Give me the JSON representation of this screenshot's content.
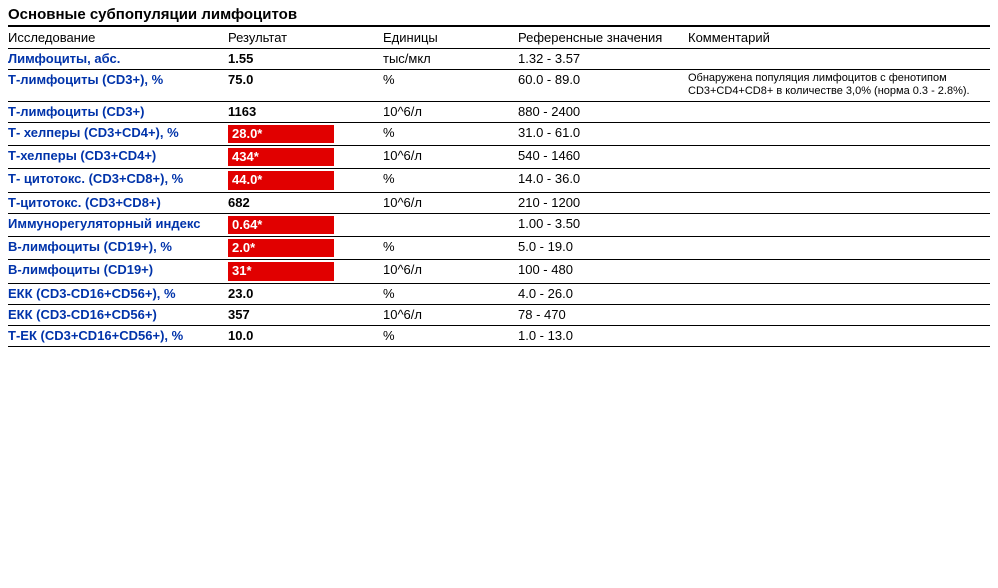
{
  "title": "Основные субпопуляции лимфоцитов",
  "columns": {
    "test": "Исследование",
    "result": "Результат",
    "units": "Единицы",
    "ref": "Референсные значения",
    "comment": "Комментарий"
  },
  "colors": {
    "link": "#0033aa",
    "abnormal_bg": "#e10000",
    "abnormal_fg": "#ffffff",
    "text": "#000000",
    "bg": "#ffffff",
    "border": "#000000"
  },
  "rows": [
    {
      "test": "Лимфоциты, абс.",
      "result": "1.55",
      "abnormal": false,
      "units": "тыс/мкл",
      "ref": "1.32 - 3.57",
      "comment": ""
    },
    {
      "test": "Т-лимфоциты (CD3+), %",
      "result": "75.0",
      "abnormal": false,
      "units": "%",
      "ref": "60.0 - 89.0",
      "comment": "Обнаружена популяция лимфоцитов с фенотипом CD3+CD4+CD8+ в количестве 3,0% (норма 0.3 - 2.8%)."
    },
    {
      "test": "Т-лимфоциты (CD3+)",
      "result": "1163",
      "abnormal": false,
      "units": "10^6/л",
      "ref": "880 - 2400",
      "comment": ""
    },
    {
      "test": "Т- хелперы (CD3+CD4+), %",
      "result": "28.0*",
      "abnormal": true,
      "units": "%",
      "ref": "31.0 - 61.0",
      "comment": ""
    },
    {
      "test": "Т-хелперы (CD3+CD4+)",
      "result": "434*",
      "abnormal": true,
      "units": "10^6/л",
      "ref": "540 - 1460",
      "comment": ""
    },
    {
      "test": "Т- цитотокс. (CD3+CD8+), %",
      "result": "44.0*",
      "abnormal": true,
      "units": "%",
      "ref": "14.0 - 36.0",
      "comment": ""
    },
    {
      "test": "Т-цитотокс. (CD3+CD8+)",
      "result": "682",
      "abnormal": false,
      "units": "10^6/л",
      "ref": "210 - 1200",
      "comment": ""
    },
    {
      "test": "Иммунорегуляторный индекс",
      "result": "0.64*",
      "abnormal": true,
      "units": "",
      "ref": "1.00 - 3.50",
      "comment": ""
    },
    {
      "test": "В-лимфоциты (CD19+), %",
      "result": "2.0*",
      "abnormal": true,
      "units": "%",
      "ref": "5.0 - 19.0",
      "comment": ""
    },
    {
      "test": "В-лимфоциты (CD19+)",
      "result": "31*",
      "abnormal": true,
      "units": "10^6/л",
      "ref": "100 - 480",
      "comment": ""
    },
    {
      "test": "ЕКК (CD3-CD16+CD56+), %",
      "result": "23.0",
      "abnormal": false,
      "units": "%",
      "ref": "4.0 - 26.0",
      "comment": ""
    },
    {
      "test": "ЕКК (CD3-CD16+CD56+)",
      "result": "357",
      "abnormal": false,
      "units": "10^6/л",
      "ref": "78 - 470",
      "comment": ""
    },
    {
      "test": "Т-ЕК (CD3+CD16+CD56+), %",
      "result": "10.0",
      "abnormal": false,
      "units": "%",
      "ref": "1.0 - 13.0",
      "comment": ""
    }
  ]
}
